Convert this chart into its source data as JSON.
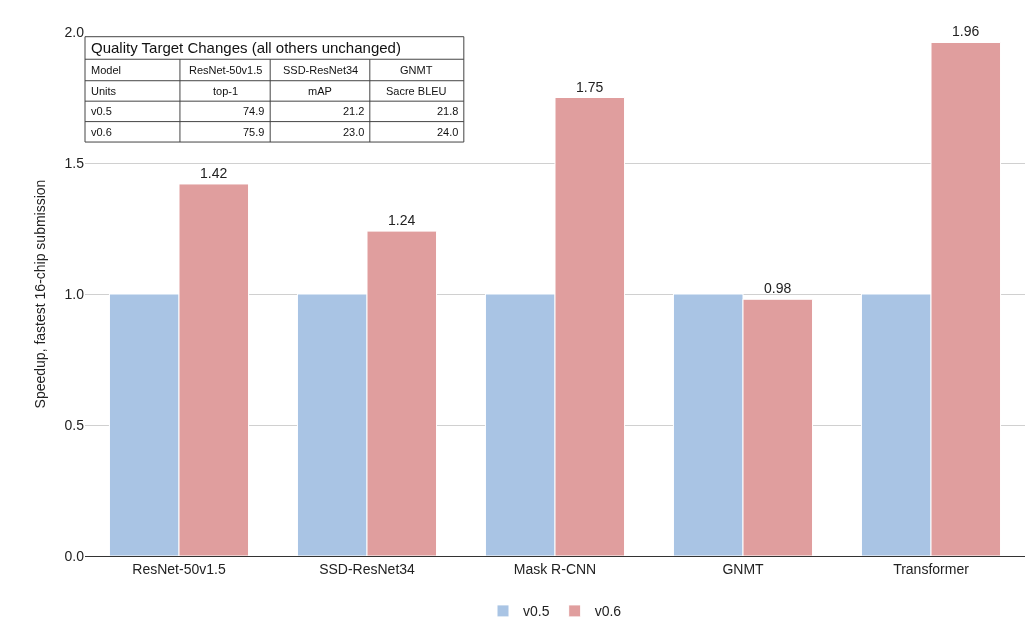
{
  "chart_data": {
    "type": "bar",
    "ylabel": "Speedup, fastest 16-chip submission",
    "categories": [
      "ResNet-50v1.5",
      "SSD-ResNet34",
      "Mask R-CNN",
      "GNMT",
      "Transformer"
    ],
    "series": [
      {
        "name": "v0.5",
        "color": "#a9c4e4",
        "values": [
          1.0,
          1.0,
          1.0,
          1.0,
          1.0
        ],
        "value_labels": [
          null,
          null,
          null,
          null,
          null
        ]
      },
      {
        "name": "v0.6",
        "color": "#e09e9e",
        "values": [
          1.42,
          1.24,
          1.75,
          0.98,
          1.96
        ],
        "value_labels": [
          "1.42",
          "1.24",
          "1.75",
          "0.98",
          "1.96"
        ]
      }
    ],
    "ylim": [
      0,
      2.0
    ],
    "yticks": [
      {
        "value": 0,
        "label": "0.0"
      },
      {
        "value": 0.5,
        "label": "0.5"
      },
      {
        "value": 1.0,
        "label": "1.0"
      },
      {
        "value": 1.5,
        "label": "1.5"
      },
      {
        "value": 2.0,
        "label": "2.0"
      }
    ],
    "grid": "y",
    "legend": "bottom",
    "annotations": [
      "Quality Target Changes (all others unchanged)",
      "Model",
      "ResNet-50v1.5",
      "SSD-ResNet34",
      "GNMT",
      "Units",
      "top-1",
      "mAP",
      "Sacre BLEU",
      "v0.5",
      "74.9",
      "21.2",
      "21.8",
      "v0.6",
      "75.9",
      "23.0",
      "24.0"
    ]
  }
}
